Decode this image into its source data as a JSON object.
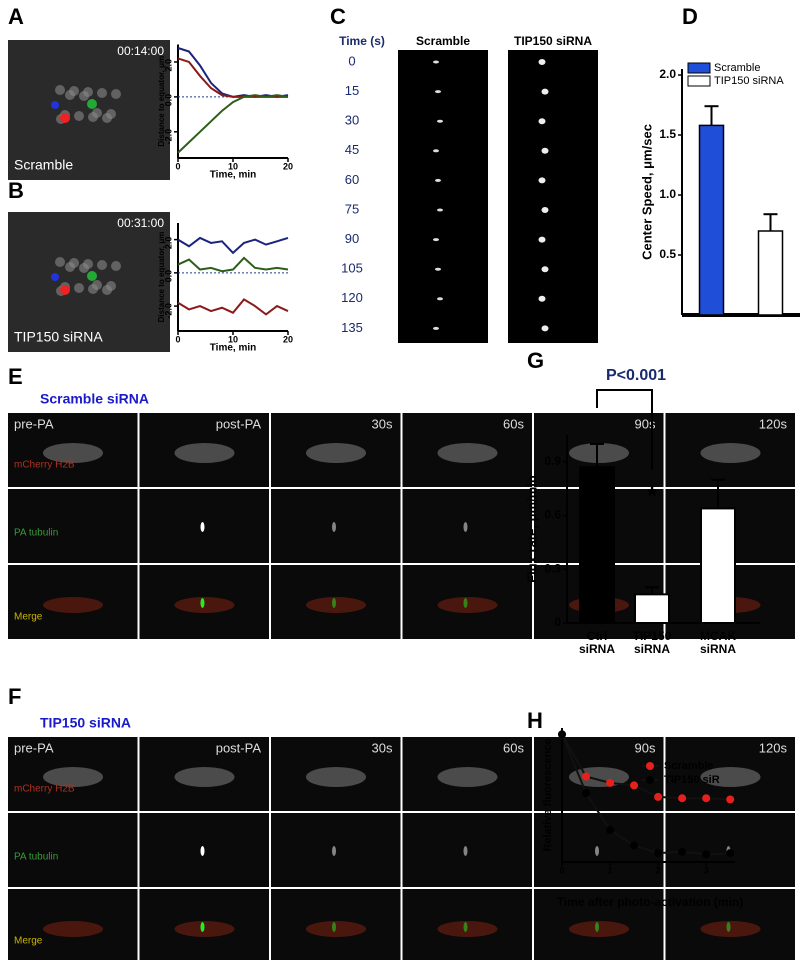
{
  "panel_letters": [
    "A",
    "B",
    "C",
    "D",
    "E",
    "F",
    "G",
    "H"
  ],
  "panel_a": {
    "timestamp": "00:14:00",
    "label": "Scramble"
  },
  "panel_b": {
    "timestamp": "00:31:00",
    "label": "TIP150 siRNA"
  },
  "panel_c": {
    "time_header": "Time (s)",
    "columns": [
      "Scramble",
      "TIP150 siRNA"
    ],
    "times": [
      0,
      15,
      30,
      45,
      60,
      75,
      90,
      105,
      120,
      135
    ]
  },
  "panel_e": {
    "title": "Scramble siRNA",
    "columns": [
      "pre-PA",
      "post-PA",
      "30s",
      "60s",
      "90s",
      "120s"
    ],
    "rows": [
      "mCherry H2B",
      "PA tubulin",
      "Merge"
    ]
  },
  "panel_f": {
    "title": "TIP150 siRNA",
    "columns": [
      "pre-PA",
      "post-PA",
      "30s",
      "60s",
      "90s",
      "120s"
    ],
    "rows": [
      "mCherry H2B",
      "PA tubulin",
      "Merge"
    ]
  },
  "chart_data": [
    {
      "type": "line",
      "y_label": "Distance to equator, μm",
      "x_label": "Time, min",
      "x": [
        0,
        2,
        4,
        6,
        8,
        10,
        12,
        14,
        16,
        18,
        20
      ],
      "xlim": [
        0,
        20
      ],
      "xticks": [
        0,
        10,
        20
      ],
      "ylim": [
        -3.5,
        3
      ],
      "yticks": [
        {
          "value": -2,
          "label": "-2.0"
        },
        {
          "value": 0,
          "label": "0.0"
        },
        {
          "value": 2,
          "label": "2.0"
        }
      ],
      "reference_line": 0,
      "series": [
        {
          "color": "#1a237e",
          "values": [
            2.8,
            2.6,
            1.8,
            0.8,
            0.2,
            0,
            0.1,
            0,
            0.1,
            0,
            0.1
          ]
        },
        {
          "color": "#8b1a1a",
          "values": [
            2.2,
            2.0,
            1.2,
            0.5,
            0.1,
            0,
            0,
            0,
            0,
            0,
            0
          ]
        },
        {
          "color": "#2e5e1a",
          "values": [
            -3.2,
            -2.6,
            -2.0,
            -1.4,
            -0.8,
            -0.3,
            0,
            0.1,
            0,
            0.1,
            0
          ]
        }
      ]
    },
    {
      "type": "line",
      "y_label": "Distance to equator, μm",
      "x_label": "Time, min",
      "x": [
        0,
        2,
        4,
        6,
        8,
        10,
        12,
        14,
        16,
        18,
        20
      ],
      "xlim": [
        0,
        20
      ],
      "xticks": [
        0,
        10,
        20
      ],
      "ylim": [
        -3.5,
        3
      ],
      "yticks": [
        {
          "value": -2,
          "label": "-2.0"
        },
        {
          "value": 0,
          "label": "0.0"
        },
        {
          "value": 2,
          "label": "2.0"
        }
      ],
      "reference_line": 0,
      "series": [
        {
          "color": "#1a237e",
          "values": [
            2.0,
            1.6,
            2.1,
            1.8,
            1.9,
            1.2,
            1.8,
            2.0,
            1.7,
            1.9,
            2.1
          ]
        },
        {
          "color": "#2e5e1a",
          "values": [
            0.5,
            0.8,
            0.2,
            0.3,
            0.1,
            0.2,
            0.9,
            0.3,
            0.2,
            0.3,
            0.2
          ]
        },
        {
          "color": "#8b1a1a",
          "values": [
            -1.8,
            -2.2,
            -2.0,
            -2.3,
            -2.1,
            -2.4,
            -1.6,
            -2.0,
            -2.5,
            -2.0,
            -2.3
          ]
        }
      ]
    },
    {
      "type": "bar",
      "y_label": "Center Speed, μm/sec",
      "ylim": [
        0,
        2.05
      ],
      "yticks": [
        0.5,
        {
          "value": 1,
          "label": "1.0"
        },
        1.5,
        {
          "value": 2,
          "label": "2.0"
        }
      ],
      "legend": "upper left",
      "series": [
        {
          "name": "Scramble",
          "color": "#1f4fd8",
          "values": [
            1.58
          ],
          "errors": [
            0.16
          ]
        },
        {
          "name": "TIP150 siRNA",
          "color": "#ffffff",
          "values": [
            0.7
          ],
          "errors": [
            0.14
          ]
        }
      ]
    },
    {
      "type": "bar",
      "y_label": "Flux rate, μm/min",
      "categories": [
        "Ctrl siRNA",
        "TIP150 siRNA",
        "MCAK siRNA"
      ],
      "values": [
        0.87,
        0.16,
        0.64
      ],
      "errors": [
        0.13,
        0.04,
        0.16
      ],
      "colors": [
        "#000000",
        "#ffffff",
        "#ffffff"
      ],
      "ylim": [
        0,
        1.05
      ],
      "yticks": [
        0,
        0.3,
        0.6,
        0.9
      ],
      "annotations": [
        "P<0.001",
        "*"
      ]
    },
    {
      "type": "line",
      "y_label": "Relative fluorescence",
      "x_label": "Time after photo-activation (min)",
      "x": [
        0,
        0.5,
        1,
        1.5,
        2,
        2.5,
        3,
        3.5
      ],
      "xlim": [
        0,
        3.6
      ],
      "xticks": [
        0,
        1,
        2,
        3
      ],
      "ylim": [
        0,
        105
      ],
      "legend": "upper right",
      "markers": true,
      "series": [
        {
          "name": "Scramble",
          "color": "#e8201c",
          "values": [
            100,
            67,
            62,
            60,
            51,
            50,
            50,
            49
          ]
        },
        {
          "name": "TIP150 siR",
          "color": "#000000",
          "values": [
            100,
            54,
            25,
            13,
            7,
            8,
            6,
            7
          ]
        }
      ]
    }
  ]
}
